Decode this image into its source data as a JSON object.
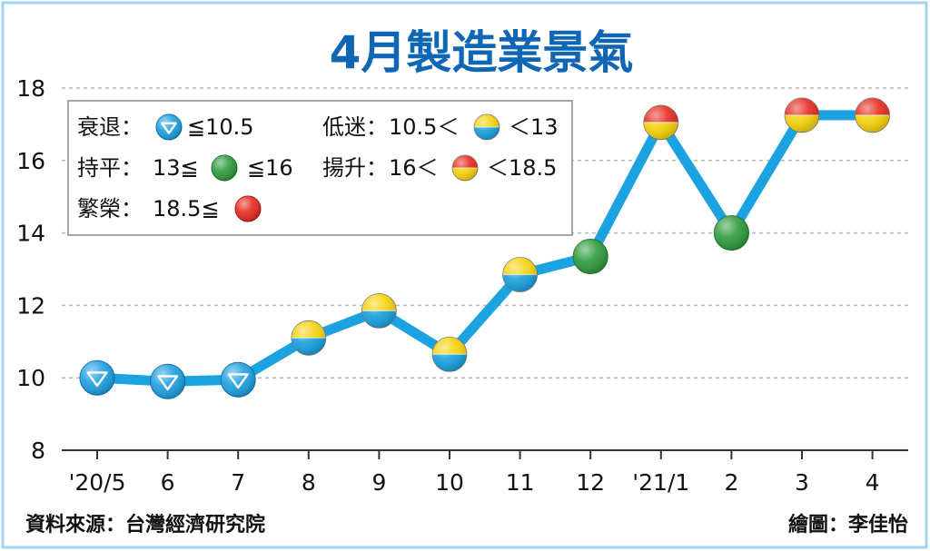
{
  "title": "4月製造業景氣",
  "source": "資料來源：台灣經濟研究院",
  "credit": "繪圖：李佳怡",
  "legend": {
    "recession": {
      "label": "衰退：",
      "rule": "≦10.5"
    },
    "low": {
      "label": "低迷：",
      "rule_left": "10.5＜",
      "rule_right": "＜13"
    },
    "stable": {
      "label": "持平：",
      "rule_left": "13≦",
      "rule_right": "≦16"
    },
    "rising": {
      "label": "揚升：",
      "rule_left": "16＜",
      "rule_right": "＜18.5"
    },
    "boom": {
      "label": "繁榮：",
      "rule": "18.5≦"
    }
  },
  "colors": {
    "line": "#1aa3e0",
    "grid": "#b8b8b8",
    "title": "#0e66b4",
    "recession": "#1e9fe0",
    "low_top": "#f5d20a",
    "low_bottom": "#18a0de",
    "stable": "#2e9a3d",
    "rising_top": "#e52b1f",
    "rising_bottom": "#f5d20a",
    "boom": "#e52b1f"
  },
  "chart_data": {
    "type": "line",
    "title": "4月製造業景氣",
    "categories": [
      "'20/5",
      "6",
      "7",
      "8",
      "9",
      "10",
      "11",
      "12",
      "'21/1",
      "2",
      "3",
      "4"
    ],
    "values": [
      10.0,
      9.9,
      9.95,
      11.1,
      11.85,
      10.65,
      12.85,
      13.35,
      17.05,
      14.0,
      17.25,
      17.25
    ],
    "signals": [
      "recession",
      "recession",
      "recession",
      "low",
      "low",
      "low",
      "low",
      "stable",
      "rising",
      "stable",
      "rising",
      "rising"
    ],
    "ylim": [
      8,
      18
    ],
    "yticks": [
      8,
      10,
      12,
      14,
      16,
      18
    ],
    "grid": true,
    "legend_position": "top-left"
  }
}
